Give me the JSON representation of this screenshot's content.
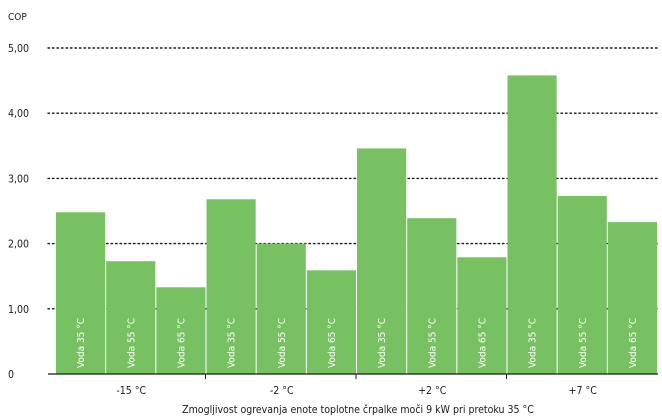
{
  "chart_data": {
    "type": "bar",
    "ylabel": "COP",
    "xlabel": "Zmogljivost ogrevanja enote toplotne črpalke moči 9 kW pri pretoku 35 °C",
    "ylim": [
      0,
      5
    ],
    "yticks": [
      "0",
      "1,00",
      "2,00",
      "3,00",
      "4,00",
      "5,00"
    ],
    "grid": true,
    "bar_color": "#78c163",
    "categories": [
      "-15 °C",
      "-2 °C",
      "+2 °C",
      "+7 °C"
    ],
    "series": [
      {
        "name": "Voda 35 °C",
        "values": [
          2.48,
          2.68,
          3.46,
          4.58
        ]
      },
      {
        "name": "Voda 55 °C",
        "values": [
          1.73,
          2.0,
          2.39,
          2.73
        ]
      },
      {
        "name": "Voda 65 °C",
        "values": [
          1.33,
          1.59,
          1.79,
          2.33
        ]
      }
    ]
  }
}
